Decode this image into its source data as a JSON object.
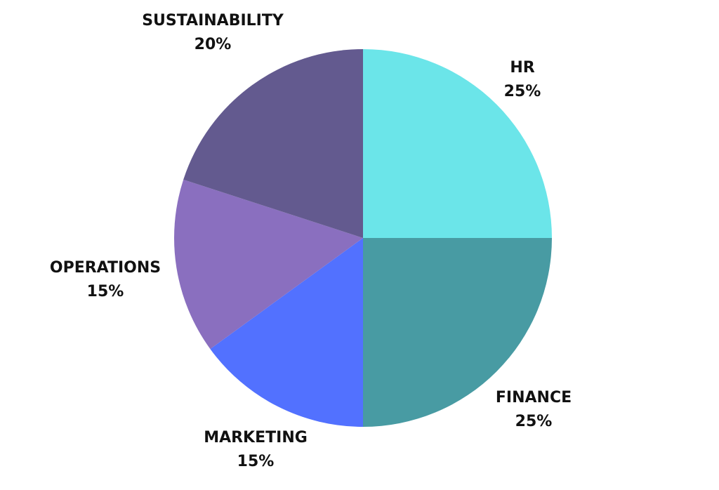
{
  "chart_data": {
    "type": "pie",
    "slices": [
      {
        "label": "HR",
        "value": 25,
        "value_label": "25%",
        "color": "#6BE5E9"
      },
      {
        "label": "FINANCE",
        "value": 25,
        "value_label": "25%",
        "color": "#489BA3"
      },
      {
        "label": "MARKETING",
        "value": 15,
        "value_label": "15%",
        "color": "#5271FF"
      },
      {
        "label": "OPERATIONS",
        "value": 15,
        "value_label": "15%",
        "color": "#8A6FBF"
      },
      {
        "label": "SUSTAINABILITY",
        "value": 20,
        "value_label": "20%",
        "color": "#635A8F"
      }
    ],
    "start": "12 o'clock",
    "direction": "clockwise",
    "legend": "none",
    "labels": "outside"
  }
}
